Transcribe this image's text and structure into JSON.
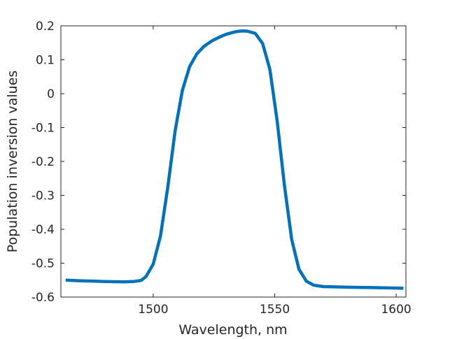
{
  "chart_data": {
    "type": "line",
    "title": "",
    "xlabel": "Wavelength, nm",
    "ylabel": "Population inversion values",
    "xlim": [
      1462,
      1604
    ],
    "ylim": [
      -0.6,
      0.2
    ],
    "x_ticks": [
      1500,
      1550,
      1600
    ],
    "x_tick_labels": [
      "1500",
      "1550",
      "1600"
    ],
    "y_ticks": [
      -0.6,
      -0.5,
      -0.4,
      -0.3,
      -0.2,
      -0.1,
      0,
      0.1,
      0.2
    ],
    "y_tick_labels": [
      "-0.6",
      "-0.5",
      "-0.4",
      "-0.3",
      "-0.2",
      "-0.1",
      "0",
      "0.1",
      "0.2"
    ],
    "grid": false,
    "box": true,
    "line_color": "#0072BD",
    "series": [
      {
        "x": [
          1464,
          1470,
          1480,
          1488,
          1492,
          1495,
          1497,
          1500,
          1503,
          1506,
          1509,
          1512,
          1515,
          1518,
          1521,
          1524,
          1527,
          1530,
          1533,
          1535,
          1537,
          1539,
          1542,
          1545,
          1548,
          1551,
          1554,
          1557,
          1560,
          1563,
          1566,
          1570,
          1580,
          1590,
          1603
        ],
        "y": [
          -0.55,
          -0.552,
          -0.554,
          -0.555,
          -0.554,
          -0.551,
          -0.54,
          -0.503,
          -0.42,
          -0.275,
          -0.11,
          0.01,
          0.08,
          0.118,
          0.14,
          0.155,
          0.166,
          0.175,
          0.181,
          0.184,
          0.185,
          0.184,
          0.178,
          0.148,
          0.072,
          -0.08,
          -0.27,
          -0.43,
          -0.518,
          -0.553,
          -0.565,
          -0.569,
          -0.571,
          -0.572,
          -0.574
        ]
      }
    ]
  }
}
